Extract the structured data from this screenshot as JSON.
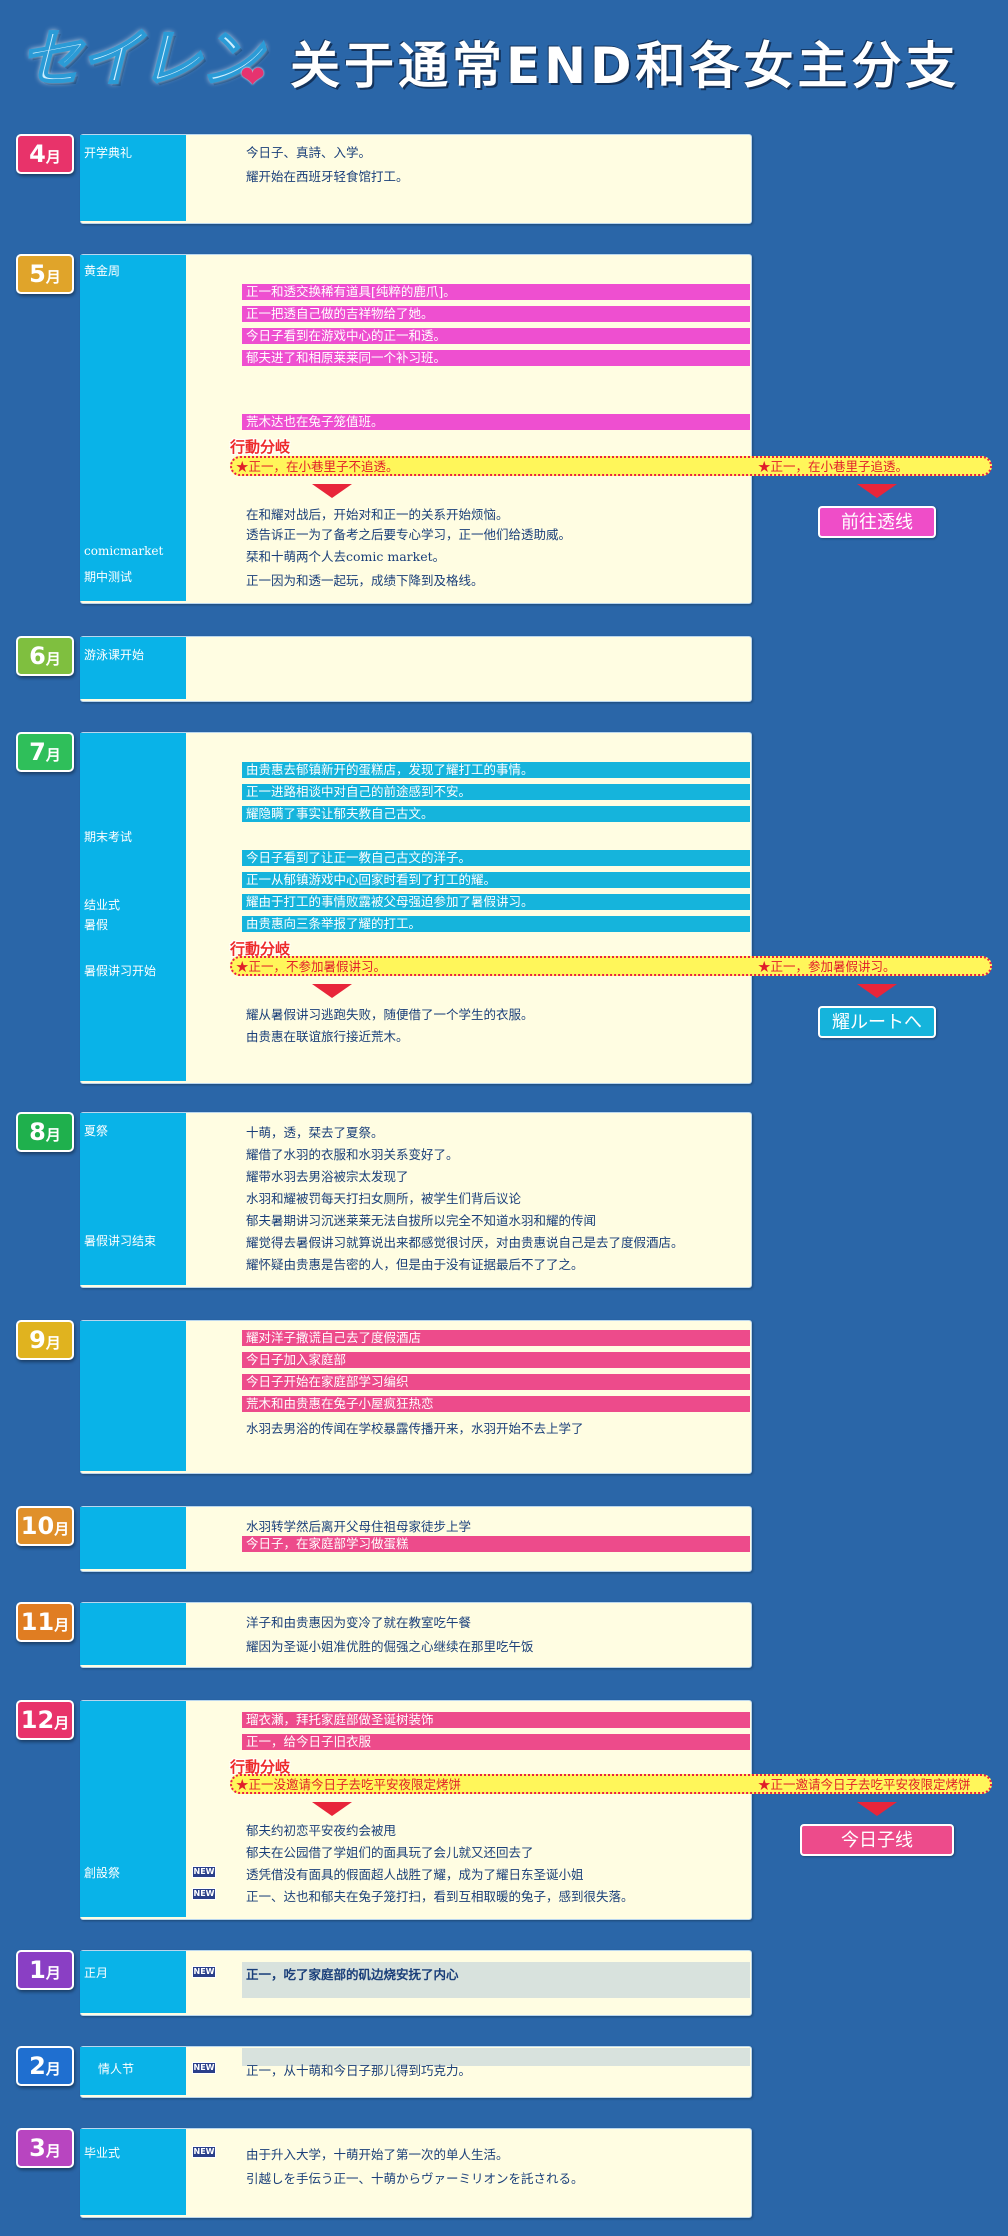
{
  "header": {
    "logo": "セイレン",
    "title": "关于通常END和各女主分支"
  },
  "common": {
    "branch_tag": "行動分岐",
    "new_badge": "NEW"
  },
  "colors": {
    "card": "#fffde2",
    "side": "#09b3e8",
    "magenta": "#ee4fd0",
    "cyan": "#15b4dc",
    "pink": "#ed4b8b",
    "choice": "#fff65a"
  },
  "apr": {
    "month": "4",
    "unit": "月",
    "events": [
      "开学典礼"
    ],
    "lines": [
      "今日子、真詩、入学。",
      "耀开始在西班牙轻食馆打工。"
    ]
  },
  "may": {
    "month": "5",
    "unit": "月",
    "events": [
      "黄金周",
      "comicmarket",
      "期中测试"
    ],
    "highlights": [
      "正一和透交换稀有道具[纯粹的鹿爪]。",
      "正一把透自己做的吉祥物给了她。",
      "今日子看到在游戏中心的正一和透。",
      "郁夫进了和相原莱莱同一个补习班。",
      "荒木达也在兔子笼值班。"
    ],
    "choice_a": "★正一，在小巷里子不追透。",
    "choice_b": "★正一，在小巷里子追透。",
    "route": "前往透线",
    "lines": [
      "在和耀对战后，开始对和正一的关系开始烦恼。",
      "透告诉正一为了备考之后要专心学习，正一他们给透助威。",
      "栞和十萌两个人去comic market。",
      "正一因为和透一起玩，成绩下降到及格线。"
    ]
  },
  "jun": {
    "month": "6",
    "unit": "月",
    "events": [
      "游泳课开始"
    ]
  },
  "jul": {
    "month": "7",
    "unit": "月",
    "events": [
      "期末考试",
      "结业式",
      "暑假",
      "暑假讲习开始"
    ],
    "highlights": [
      "由贵惠去郁镇新开的蛋糕店，发现了耀打工的事情。",
      "正一进路相谈中对自己的前途感到不安。",
      "耀隐瞒了事实让郁夫教自己古文。",
      "今日子看到了让正一教自己古文的洋子。",
      "正一从郁镇游戏中心回家时看到了打工的耀。",
      "耀由于打工的事情败露被父母强迫参加了暑假讲习。",
      "由贵惠向三条举报了耀的打工。"
    ],
    "choice_a": "★正一，不参加暑假讲习。",
    "choice_b": "★正一，参加暑假讲习。",
    "route": "耀ルートへ",
    "lines": [
      "耀从暑假讲习逃跑失败，随便借了一个学生的衣服。",
      "由贵惠在联谊旅行接近荒木。"
    ]
  },
  "aug": {
    "month": "8",
    "unit": "月",
    "events": [
      "夏祭",
      "暑假讲习结束"
    ],
    "lines": [
      "十萌，透，栞去了夏祭。",
      "耀借了水羽的衣服和水羽关系变好了。",
      "耀带水羽去男浴被宗太发现了",
      "水羽和耀被罚每天打扫女厕所，被学生们背后议论",
      "郁夫暑期讲习沉迷莱莱无法自拔所以完全不知道水羽和耀的传闻",
      "耀觉得去暑假讲习就算说出来都感觉很讨厌，对由贵惠说自己是去了度假酒店。",
      "耀怀疑由贵惠是告密的人，但是由于没有证据最后不了了之。"
    ]
  },
  "sep": {
    "month": "9",
    "unit": "月",
    "highlights": [
      "耀对洋子撒谎自己去了度假酒店",
      "今日子加入家庭部",
      "今日子开始在家庭部学习编织",
      "荒木和由贵惠在兔子小屋疯狂热恋"
    ],
    "lines": [
      "水羽去男浴的传闻在学校暴露传播开来，水羽开始不去上学了"
    ]
  },
  "oct": {
    "month": "10",
    "unit": "月",
    "lines": [
      "水羽转学然后离开父母住祖母家徒步上学"
    ],
    "highlights": [
      "今日子，在家庭部学习做蛋糕"
    ]
  },
  "nov": {
    "month": "11",
    "unit": "月",
    "lines": [
      "洋子和由贵惠因为变冷了就在教室吃午餐",
      "耀因为圣诞小姐准优胜的倔强之心继续在那里吃午饭"
    ]
  },
  "dec": {
    "month": "12",
    "unit": "月",
    "events": [
      "創設祭"
    ],
    "highlights": [
      "瑠衣瀬，拜托家庭部做圣诞树装饰",
      "正一，给今日子旧衣服"
    ],
    "choice_a": "★正一没邀请今日子去吃平安夜限定烤饼",
    "choice_b": "★正一邀请今日子去吃平安夜限定烤饼",
    "route": "今日子线",
    "lines": [
      "郁夫约初恋平安夜约会被甩",
      "郁夫在公园借了学姐们的面具玩了会儿就又还回去了",
      "透凭借没有面具的假面超人战胜了耀，成为了耀日东圣诞小姐",
      "正一、达也和郁夫在兔子笼打扫，看到互相取暖的兔子，感到很失落。"
    ]
  },
  "jan": {
    "month": "1",
    "unit": "月",
    "events": [
      "正月"
    ],
    "lines": [
      "正一，吃了家庭部的矶边烧安抚了内心"
    ]
  },
  "feb": {
    "month": "2",
    "unit": "月",
    "events": [
      "情人节"
    ],
    "lines": [
      "正一，从十萌和今日子那儿得到巧克力。"
    ]
  },
  "mar": {
    "month": "3",
    "unit": "月",
    "events": [
      "毕业式"
    ],
    "lines": [
      "由于升入大学，十萌开始了第一次的单人生活。",
      "引越しを手伝う正一、十萌からヴァーミリオンを託される。"
    ]
  }
}
